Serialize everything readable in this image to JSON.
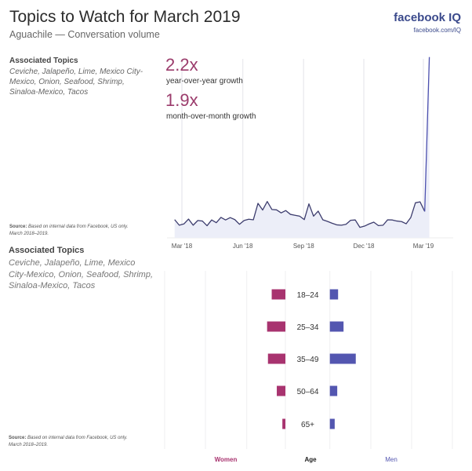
{
  "header": {
    "title": "Topics to Watch for March 2019",
    "subtitle": "Aguachile — Conversation volume",
    "logo_text": "facebook IQ",
    "logo_url_text": "facebook.com/IQ"
  },
  "top_panel": {
    "topics_heading": "Associated Topics",
    "topics_text": "Ceviche, Jalapeño, Lime, Mexico City-Mexico, Onion, Seafood, Shrimp, Sinaloa-Mexico, Tacos",
    "source_label": "Source:",
    "source_text": "Based on internal data from Facebook, US only. March 2018–2019.",
    "yoy_value": "2.2x",
    "yoy_label": "year-over-year growth",
    "mom_value": "1.9x",
    "mom_label": "month-over-month growth"
  },
  "bottom_panel": {
    "topics_heading": "Associated Topics",
    "topics_text": "Ceviche, Jalapeño, Lime, Mexico City-Mexico, Onion, Seafood, Shrimp, Sinaloa-Mexico, Tacos",
    "source_label": "Source:",
    "source_text": "Based on internal data from Facebook, US only. March 2018–2019."
  },
  "colors": {
    "line": "#3d3d6e",
    "spike": "#4b4fae",
    "area": "#eceef8",
    "women": "#a8336f",
    "men": "#5356b0",
    "accent": "#9b3c6c"
  },
  "chart_data": [
    {
      "type": "area",
      "title": "Aguachile — Conversation volume",
      "xlabel": "",
      "ylabel": "",
      "grid": "vertical",
      "x_tick_labels": [
        "Mar '18",
        "Jun '18",
        "Sep '18",
        "Dec '18",
        "Mar '19"
      ],
      "x_tick_dates": [
        "2018-03-01",
        "2018-06-01",
        "2018-09-01",
        "2018-12-01",
        "2019-03-01"
      ],
      "ylim": [
        0,
        100
      ],
      "x": [
        "2018-02-18",
        "2018-02-25",
        "2018-03-04",
        "2018-03-11",
        "2018-03-18",
        "2018-03-25",
        "2018-04-01",
        "2018-04-08",
        "2018-04-15",
        "2018-04-22",
        "2018-04-29",
        "2018-05-06",
        "2018-05-13",
        "2018-05-20",
        "2018-05-27",
        "2018-06-03",
        "2018-06-10",
        "2018-06-17",
        "2018-06-24",
        "2018-07-01",
        "2018-07-08",
        "2018-07-15",
        "2018-07-22",
        "2018-07-29",
        "2018-08-05",
        "2018-08-12",
        "2018-08-19",
        "2018-08-26",
        "2018-09-02",
        "2018-09-09",
        "2018-09-16",
        "2018-09-23",
        "2018-09-30",
        "2018-10-07",
        "2018-10-14",
        "2018-10-21",
        "2018-10-28",
        "2018-11-04",
        "2018-11-11",
        "2018-11-18",
        "2018-11-25",
        "2018-12-02",
        "2018-12-09",
        "2018-12-16",
        "2018-12-23",
        "2018-12-30",
        "2019-01-06",
        "2019-01-13",
        "2019-01-20",
        "2019-01-27",
        "2019-02-03",
        "2019-02-10",
        "2019-02-17",
        "2019-02-24",
        "2019-03-03",
        "2019-03-10"
      ],
      "values": [
        10.1,
        7.0,
        7.7,
        10.4,
        7.0,
        9.6,
        9.3,
        6.7,
        9.9,
        8.4,
        11.3,
        9.9,
        11.2,
        10.1,
        7.5,
        9.6,
        10.3,
        10.0,
        19.1,
        15.4,
        20.1,
        15.7,
        15.5,
        13.8,
        15.1,
        13.0,
        12.5,
        12.0,
        10.1,
        18.8,
        12.0,
        14.8,
        10.0,
        9.1,
        8.1,
        7.2,
        7.0,
        7.5,
        9.7,
        9.9,
        5.8,
        6.5,
        7.7,
        8.7,
        6.8,
        7.0,
        10.0,
        9.9,
        9.3,
        9.0,
        7.8,
        11.3,
        19.4,
        19.9,
        14.6,
        100
      ]
    },
    {
      "type": "bar",
      "orientation": "horizontal-butterfly",
      "categories": [
        "18–24",
        "25–34",
        "35–49",
        "50–64",
        "65+"
      ],
      "category_axis_label": "Age",
      "series": [
        {
          "name": "Women",
          "values": [
            11.3,
            15.1,
            14.4,
            7.1,
            2.5
          ]
        },
        {
          "name": "Men",
          "values": [
            6.8,
            11.3,
            21.4,
            6.1,
            4.0
          ]
        }
      ],
      "grid": "vertical"
    }
  ]
}
